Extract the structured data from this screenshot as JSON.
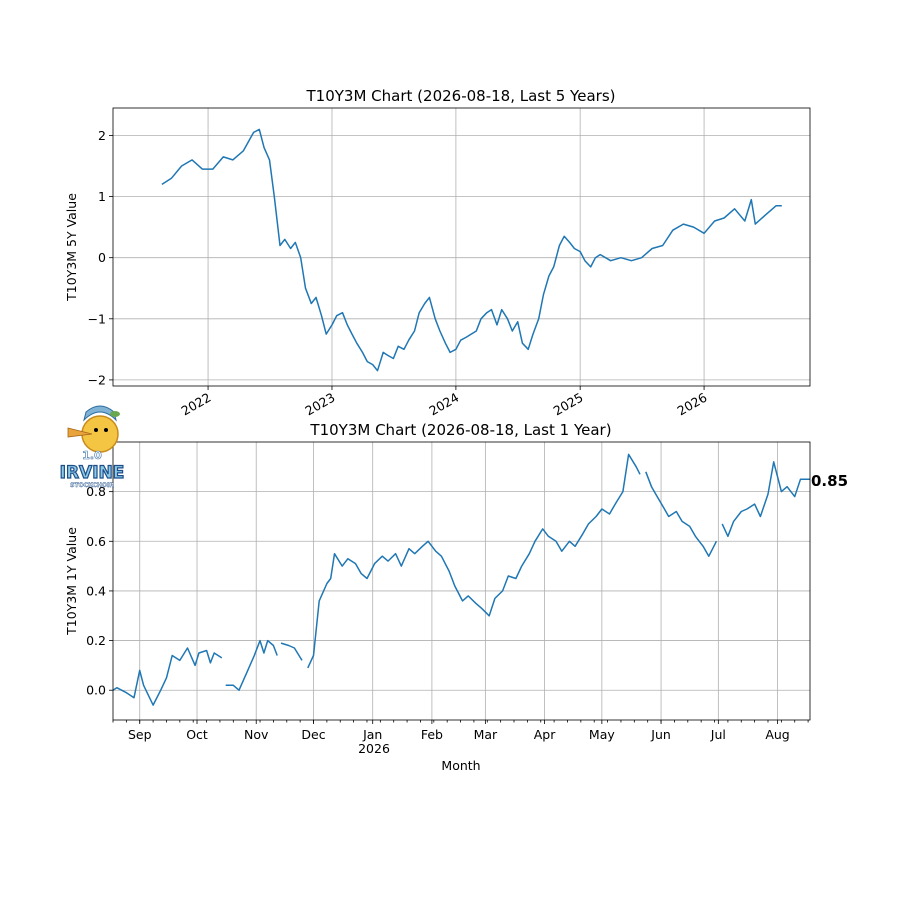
{
  "chart_data": [
    {
      "type": "line",
      "title": "T10Y3M Chart (2026-08-18, Last 5 Years)",
      "ylabel": "T10Y3M 5Y Value",
      "xlabel": "",
      "ylim": [
        -2.1,
        2.45
      ],
      "xlim": [
        "2021-03-27",
        "2026-11-09"
      ],
      "grid": true,
      "y_ticks": [
        "2",
        "1",
        "0",
        "−1",
        "−2"
      ],
      "x_ticks": [
        "2022",
        "2023",
        "2024",
        "2025",
        "2026"
      ],
      "color": "#1f77b4",
      "series": [
        {
          "x": [
            "2021-08-18",
            "2021-09-15",
            "2021-10-15",
            "2021-11-15",
            "2021-12-15",
            "2022-01-15",
            "2022-02-15",
            "2022-03-15",
            "2022-04-15",
            "2022-05-15",
            "2022-06-01",
            "2022-06-15",
            "2022-07-01",
            "2022-07-15",
            "2022-08-01",
            "2022-08-15",
            "2022-09-01",
            "2022-09-15",
            "2022-10-01",
            "2022-10-15",
            "2022-11-01",
            "2022-11-15",
            "2022-12-01",
            "2022-12-15",
            "2023-01-01",
            "2023-01-15",
            "2023-02-01",
            "2023-02-15",
            "2023-03-01",
            "2023-03-15",
            "2023-04-01",
            "2023-04-15",
            "2023-05-01",
            "2023-05-15",
            "2023-06-01",
            "2023-06-15",
            "2023-07-01",
            "2023-07-15",
            "2023-08-01",
            "2023-08-15",
            "2023-09-01",
            "2023-09-15",
            "2023-10-01",
            "2023-10-15",
            "2023-11-01",
            "2023-11-15",
            "2023-12-01",
            "2023-12-15",
            "2024-01-01",
            "2024-01-15",
            "2024-02-01",
            "2024-02-15",
            "2024-03-01",
            "2024-03-15",
            "2024-04-01",
            "2024-04-15",
            "2024-05-01",
            "2024-05-15",
            "2024-06-01",
            "2024-06-15",
            "2024-07-01",
            "2024-07-15",
            "2024-08-01",
            "2024-08-15",
            "2024-09-01",
            "2024-09-15",
            "2024-10-01",
            "2024-10-15",
            "2024-11-01",
            "2024-11-15",
            "2024-12-01",
            "2024-12-15",
            "2025-01-01",
            "2025-01-15",
            "2025-02-01",
            "2025-02-15",
            "2025-03-01",
            "2025-04-01",
            "2025-05-01",
            "2025-06-01",
            "2025-07-01",
            "2025-08-01",
            "2025-09-01",
            "2025-10-01",
            "2025-11-01",
            "2025-12-01",
            "2026-01-01",
            "2026-02-01",
            "2026-03-01",
            "2026-04-01",
            "2026-05-01",
            "2026-05-20",
            "2026-06-01",
            "2026-07-01",
            "2026-08-01",
            "2026-08-18"
          ],
          "y": [
            1.2,
            1.3,
            1.5,
            1.6,
            1.45,
            1.45,
            1.65,
            1.6,
            1.75,
            2.05,
            2.1,
            1.8,
            1.6,
            1.0,
            0.2,
            0.3,
            0.15,
            0.25,
            0.0,
            -0.5,
            -0.75,
            -0.65,
            -0.95,
            -1.25,
            -1.1,
            -0.95,
            -0.9,
            -1.1,
            -1.25,
            -1.4,
            -1.55,
            -1.7,
            -1.75,
            -1.85,
            -1.55,
            -1.6,
            -1.65,
            -1.45,
            -1.5,
            -1.35,
            -1.2,
            -0.9,
            -0.75,
            -0.65,
            -1.0,
            -1.2,
            -1.4,
            -1.55,
            -1.5,
            -1.35,
            -1.3,
            -1.25,
            -1.2,
            -1.0,
            -0.9,
            -0.85,
            -1.1,
            -0.85,
            -1.0,
            -1.2,
            -1.05,
            -1.4,
            -1.5,
            -1.25,
            -1.0,
            -0.6,
            -0.3,
            -0.15,
            0.2,
            0.35,
            0.25,
            0.15,
            0.1,
            -0.05,
            -0.15,
            0.0,
            0.05,
            -0.05,
            0.0,
            -0.05,
            0.0,
            0.15,
            0.2,
            0.45,
            0.55,
            0.5,
            0.4,
            0.6,
            0.65,
            0.8,
            0.6,
            0.95,
            0.55,
            0.7,
            0.85,
            0.85
          ]
        }
      ]
    },
    {
      "type": "line",
      "title": "T10Y3M Chart (2026-08-18, Last 1 Year)",
      "ylabel": "T10Y3M 1Y Value",
      "xlabel": "Month",
      "ylim": [
        -0.12,
        1.0
      ],
      "xlim": [
        "2025-08-18",
        "2026-08-18"
      ],
      "grid": true,
      "y_ticks": [
        "0.0",
        "0.2",
        "0.4",
        "0.6",
        "0.8"
      ],
      "x_ticks": [
        "Sep",
        "Oct",
        "Nov",
        "Dec",
        "Jan",
        "Feb",
        "Mar",
        "Apr",
        "May",
        "Jun",
        "Jul",
        "Aug"
      ],
      "x_ticks_second_line": "2026",
      "last_value_label": "0.85",
      "color": "#1f77b4",
      "series": [
        {
          "x": [
            "2025-08-18",
            "2025-08-20",
            "2025-08-25",
            "2025-08-29",
            "2025-09-01",
            "2025-09-03",
            "2025-09-08",
            "2025-09-12",
            "2025-09-15",
            "2025-09-18",
            "2025-09-22",
            "2025-09-26",
            "2025-09-30",
            "2025-10-02",
            "2025-10-06",
            "2025-10-08",
            "2025-10-10",
            "2025-10-14",
            "2025-10-16",
            "2025-10-20",
            "2025-10-23",
            "2025-10-27",
            "2025-10-31",
            "2025-11-03",
            "2025-11-05",
            "2025-11-07",
            "2025-11-10",
            "2025-11-12",
            "2025-11-14",
            "2025-11-18",
            "2025-11-21",
            "2025-11-25",
            "2025-11-28",
            "2025-12-01",
            "2025-12-04",
            "2025-12-08",
            "2025-12-10",
            "2025-12-12",
            "2025-12-16",
            "2025-12-19",
            "2025-12-23",
            "2025-12-26",
            "2025-12-29",
            "2025-12-31",
            "2026-01-02",
            "2026-01-06",
            "2026-01-09",
            "2026-01-13",
            "2026-01-16",
            "2026-01-20",
            "2026-01-23",
            "2026-01-27",
            "2026-01-30",
            "2026-02-03",
            "2026-02-06",
            "2026-02-10",
            "2026-02-13",
            "2026-02-17",
            "2026-02-20",
            "2026-02-24",
            "2026-02-27",
            "2026-03-03",
            "2026-03-06",
            "2026-03-10",
            "2026-03-13",
            "2026-03-17",
            "2026-03-20",
            "2026-03-24",
            "2026-03-27",
            "2026-03-31",
            "2026-04-03",
            "2026-04-07",
            "2026-04-10",
            "2026-04-14",
            "2026-04-17",
            "2026-04-21",
            "2026-04-24",
            "2026-04-28",
            "2026-05-01",
            "2026-05-05",
            "2026-05-08",
            "2026-05-12",
            "2026-05-15",
            "2026-05-19",
            "2026-05-21",
            "2026-05-24",
            "2026-05-27",
            "2026-05-30",
            "2026-06-02",
            "2026-06-05",
            "2026-06-09",
            "2026-06-12",
            "2026-06-16",
            "2026-06-19",
            "2026-06-23",
            "2026-06-26",
            "2026-06-30",
            "2026-07-03",
            "2026-07-06",
            "2026-07-09",
            "2026-07-13",
            "2026-07-16",
            "2026-07-20",
            "2026-07-23",
            "2026-07-27",
            "2026-07-30",
            "2026-08-03",
            "2026-08-06",
            "2026-08-10",
            "2026-08-13",
            "2026-08-18"
          ],
          "y": [
            0.0,
            0.01,
            -0.01,
            -0.03,
            0.08,
            0.02,
            -0.06,
            0.0,
            0.05,
            0.14,
            0.12,
            0.17,
            0.1,
            0.15,
            0.16,
            0.11,
            0.15,
            0.13,
            0.02,
            0.02,
            0.0,
            0.07,
            0.14,
            0.2,
            0.15,
            0.2,
            0.18,
            0.14,
            0.19,
            0.18,
            0.17,
            0.12,
            0.09,
            0.14,
            0.36,
            0.43,
            0.45,
            0.55,
            0.5,
            0.53,
            0.51,
            0.47,
            0.45,
            0.48,
            0.51,
            0.54,
            0.52,
            0.55,
            0.5,
            0.57,
            0.55,
            0.58,
            0.6,
            0.56,
            0.54,
            0.48,
            0.42,
            0.36,
            0.38,
            0.35,
            0.33,
            0.3,
            0.37,
            0.4,
            0.46,
            0.45,
            0.5,
            0.55,
            0.6,
            0.65,
            0.62,
            0.6,
            0.56,
            0.6,
            0.58,
            0.63,
            0.67,
            0.7,
            0.73,
            0.71,
            0.75,
            0.8,
            0.95,
            0.9,
            0.87,
            0.88,
            0.82,
            0.78,
            0.74,
            0.7,
            0.72,
            0.68,
            0.66,
            0.62,
            0.58,
            0.54,
            0.6,
            0.67,
            0.62,
            0.68,
            0.72,
            0.73,
            0.75,
            0.7,
            0.79,
            0.92,
            0.8,
            0.82,
            0.78,
            0.85,
            0.85
          ]
        }
      ]
    }
  ],
  "logo": {
    "version": "1.0",
    "line1": "IRVINE",
    "line2": "STOCKCHOIR"
  }
}
